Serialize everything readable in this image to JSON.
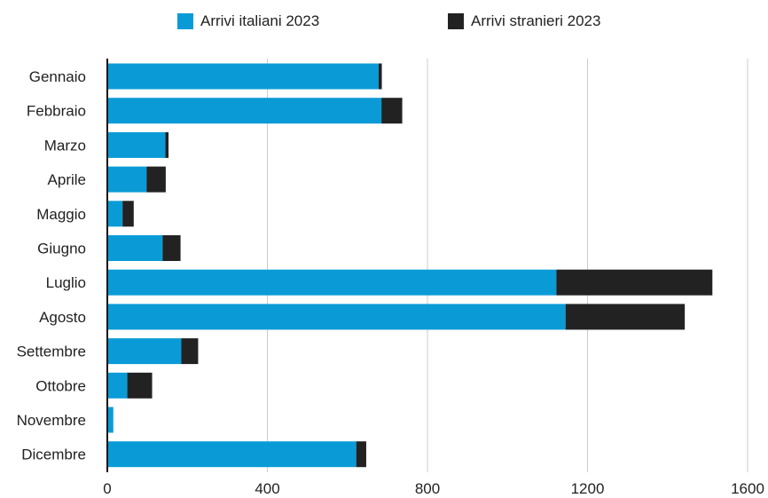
{
  "colors": {
    "italiani": "#0a9bd7",
    "stranieri": "#222222",
    "grid": "#cccccc",
    "axis": "#111111"
  },
  "chart_data": {
    "type": "bar",
    "orientation": "horizontal",
    "stacked": true,
    "categories": [
      "Gennaio",
      "Febbraio",
      "Marzo",
      "Aprile",
      "Maggio",
      "Giugno",
      "Luglio",
      "Agosto",
      "Settembre",
      "Ottobre",
      "Novembre",
      "Dicembre"
    ],
    "series": [
      {
        "name": "Arrivi italiani 2023",
        "color": "#0a9bd7",
        "values": [
          678,
          685,
          145,
          98,
          38,
          138,
          1122,
          1145,
          185,
          50,
          15,
          622
        ]
      },
      {
        "name": "Arrivi stranieri 2023",
        "color": "#222222",
        "values": [
          8,
          52,
          8,
          48,
          28,
          45,
          390,
          298,
          42,
          62,
          0,
          25
        ]
      }
    ],
    "xlim": [
      0,
      1600
    ],
    "xticks": [
      "0",
      "400",
      "800",
      "1200",
      "1600"
    ],
    "grid": "vertical",
    "legend_position": "top-center",
    "title": "",
    "xlabel": "",
    "ylabel": ""
  }
}
